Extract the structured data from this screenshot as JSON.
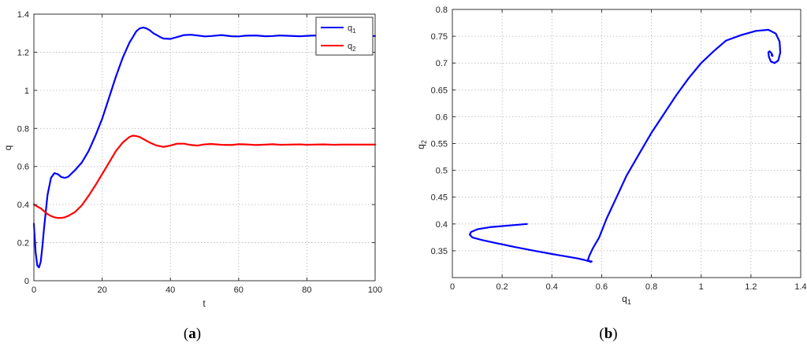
{
  "chart_data": [
    {
      "type": "line",
      "panel": "a",
      "xlabel": "t",
      "ylabel": "q",
      "xlim": [
        0,
        100
      ],
      "ylim": [
        0,
        1.4
      ],
      "xticks": [
        0,
        20,
        40,
        60,
        80,
        100
      ],
      "yticks": [
        0,
        0.2,
        0.4,
        0.6,
        0.8,
        1,
        1.2,
        1.4
      ],
      "grid": true,
      "legend_position": "top-right",
      "series": [
        {
          "name": "q1",
          "name_main": "q",
          "name_sub": "1",
          "color": "#0000ff",
          "x": [
            0,
            0.5,
            1,
            1.5,
            2,
            2.5,
            3,
            4,
            5,
            6,
            7,
            8,
            9,
            10,
            12,
            14,
            16,
            18,
            20,
            22,
            24,
            26,
            28,
            29,
            30,
            31,
            32,
            33,
            34,
            35,
            36,
            37,
            38,
            40,
            42,
            44,
            46,
            48,
            50,
            52,
            55,
            58,
            60,
            62,
            65,
            68,
            70,
            72,
            75,
            78,
            80,
            82,
            85,
            88,
            90,
            92,
            95,
            98,
            100
          ],
          "y": [
            0.3,
            0.15,
            0.08,
            0.07,
            0.1,
            0.18,
            0.28,
            0.45,
            0.54,
            0.565,
            0.56,
            0.545,
            0.54,
            0.545,
            0.58,
            0.62,
            0.68,
            0.76,
            0.85,
            0.96,
            1.07,
            1.17,
            1.25,
            1.28,
            1.31,
            1.325,
            1.33,
            1.325,
            1.315,
            1.3,
            1.29,
            1.28,
            1.272,
            1.27,
            1.28,
            1.29,
            1.292,
            1.288,
            1.283,
            1.285,
            1.29,
            1.284,
            1.283,
            1.287,
            1.288,
            1.284,
            1.285,
            1.288,
            1.286,
            1.284,
            1.286,
            1.288,
            1.285,
            1.284,
            1.287,
            1.285,
            1.285,
            1.286,
            1.285
          ]
        },
        {
          "name": "q2",
          "name_main": "q",
          "name_sub": "2",
          "color": "#ff0000",
          "x": [
            0,
            1,
            2,
            3,
            4,
            5,
            6,
            7,
            8,
            9,
            10,
            12,
            14,
            16,
            18,
            20,
            22,
            24,
            26,
            28,
            29,
            30,
            31,
            32,
            34,
            36,
            38,
            40,
            42,
            44,
            46,
            48,
            50,
            52,
            55,
            58,
            60,
            62,
            65,
            68,
            70,
            72,
            75,
            78,
            80,
            82,
            85,
            88,
            90,
            92,
            95,
            98,
            100
          ],
          "y": [
            0.4,
            0.39,
            0.38,
            0.365,
            0.35,
            0.34,
            0.333,
            0.33,
            0.33,
            0.333,
            0.34,
            0.36,
            0.395,
            0.445,
            0.5,
            0.56,
            0.62,
            0.68,
            0.725,
            0.755,
            0.762,
            0.76,
            0.755,
            0.745,
            0.725,
            0.71,
            0.703,
            0.71,
            0.72,
            0.72,
            0.713,
            0.71,
            0.716,
            0.718,
            0.714,
            0.713,
            0.717,
            0.716,
            0.713,
            0.715,
            0.717,
            0.714,
            0.715,
            0.716,
            0.714,
            0.715,
            0.716,
            0.714,
            0.715,
            0.715,
            0.715,
            0.715,
            0.715
          ]
        }
      ]
    },
    {
      "type": "line",
      "panel": "b",
      "xlabel": "q1",
      "xlabel_main": "q",
      "xlabel_sub": "1",
      "ylabel": "q2",
      "ylabel_main": "q",
      "ylabel_sub": "2",
      "xlim": [
        0,
        1.4
      ],
      "ylim": [
        0.3,
        0.8
      ],
      "xticks": [
        0,
        0.2,
        0.4,
        0.6,
        0.8,
        1,
        1.2,
        1.4
      ],
      "yticks": [
        0.35,
        0.4,
        0.45,
        0.5,
        0.55,
        0.6,
        0.65,
        0.7,
        0.75,
        0.8
      ],
      "grid": true,
      "series": [
        {
          "color": "#0000ff",
          "x": [
            0.3,
            0.25,
            0.2,
            0.15,
            0.1,
            0.075,
            0.07,
            0.08,
            0.12,
            0.18,
            0.25,
            0.33,
            0.4,
            0.45,
            0.5,
            0.53,
            0.545,
            0.56,
            0.555,
            0.545,
            0.55,
            0.565,
            0.59,
            0.62,
            0.66,
            0.7,
            0.75,
            0.8,
            0.85,
            0.9,
            0.95,
            1.0,
            1.05,
            1.1,
            1.16,
            1.22,
            1.27,
            1.3,
            1.315,
            1.318,
            1.31,
            1.295,
            1.28,
            1.272,
            1.27,
            1.275,
            1.283,
            1.287,
            1.286,
            1.283,
            1.284,
            1.286,
            1.285
          ],
          "y": [
            0.4,
            0.398,
            0.396,
            0.394,
            0.39,
            0.385,
            0.38,
            0.375,
            0.37,
            0.364,
            0.357,
            0.35,
            0.344,
            0.34,
            0.336,
            0.333,
            0.331,
            0.33,
            0.329,
            0.333,
            0.34,
            0.355,
            0.375,
            0.41,
            0.45,
            0.49,
            0.53,
            0.57,
            0.605,
            0.64,
            0.672,
            0.7,
            0.722,
            0.742,
            0.752,
            0.76,
            0.762,
            0.755,
            0.74,
            0.72,
            0.705,
            0.7,
            0.703,
            0.712,
            0.72,
            0.722,
            0.718,
            0.714,
            0.713,
            0.715,
            0.716,
            0.715,
            0.715
          ]
        }
      ]
    }
  ],
  "captions": {
    "a_open": "(",
    "a_letter": "a",
    "a_close": ")",
    "b_open": "(",
    "b_letter": "b",
    "b_close": ")"
  }
}
